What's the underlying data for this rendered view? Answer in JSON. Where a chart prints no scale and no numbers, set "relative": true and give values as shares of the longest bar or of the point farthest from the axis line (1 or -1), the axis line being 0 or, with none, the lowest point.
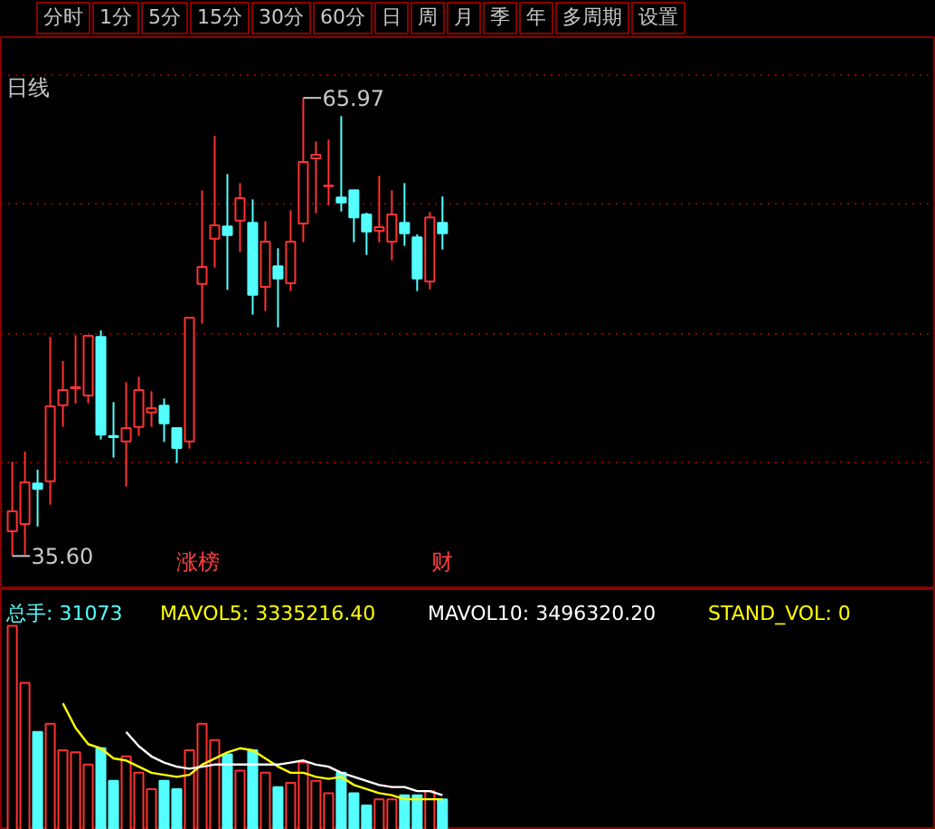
{
  "chart_data": [
    {
      "type": "candlestick",
      "title": "日线",
      "categories": [
        null,
        null,
        null,
        null,
        null,
        null,
        null,
        null,
        null,
        null,
        null,
        null,
        null,
        null,
        null,
        null,
        null,
        null,
        null,
        null,
        null,
        null,
        null,
        null,
        null,
        null,
        null,
        null,
        null,
        null,
        null,
        null,
        null,
        null,
        null
      ],
      "ohlc": [
        [
          37.24,
          41.84,
          35.6,
          38.56
        ],
        [
          37.72,
          42.52,
          35.7,
          40.48
        ],
        [
          40.4,
          41.32,
          37.56,
          40.04
        ],
        [
          40.56,
          50.12,
          39.0,
          45.52
        ],
        [
          45.6,
          48.52,
          44.16,
          46.6
        ],
        [
          46.72,
          50.24,
          45.72,
          46.8
        ],
        [
          46.24,
          50.24,
          45.72,
          50.2
        ],
        [
          50.12,
          50.56,
          43.32,
          43.64
        ],
        [
          43.56,
          45.8,
          42.12,
          43.48
        ],
        [
          43.2,
          47.12,
          40.2,
          44.08
        ],
        [
          44.16,
          47.48,
          43.56,
          46.6
        ],
        [
          45.12,
          46.52,
          44.16,
          45.4
        ],
        [
          45.56,
          46.04,
          43.16,
          44.4
        ],
        [
          44.08,
          44.1,
          41.76,
          42.76
        ],
        [
          43.2,
          51.44,
          42.72,
          51.4
        ],
        [
          53.64,
          59.84,
          51.0,
          54.76
        ],
        [
          56.64,
          63.44,
          54.72,
          57.52
        ],
        [
          57.44,
          60.92,
          53.24,
          56.88
        ],
        [
          57.84,
          60.32,
          55.76,
          59.32
        ],
        [
          57.68,
          59.24,
          51.6,
          52.92
        ],
        [
          53.44,
          57.8,
          51.84,
          56.44
        ],
        [
          54.8,
          56.0,
          50.76,
          54.0
        ],
        [
          53.68,
          58.52,
          53.16,
          56.44
        ],
        [
          57.64,
          65.97,
          56.4,
          61.72
        ],
        [
          61.96,
          63.08,
          58.32,
          62.2
        ],
        [
          60.12,
          63.2,
          58.84,
          60.16
        ],
        [
          59.36,
          64.76,
          58.44,
          59.04
        ],
        [
          59.84,
          59.84,
          56.4,
          58.04
        ],
        [
          58.24,
          58.36,
          55.56,
          57.12
        ],
        [
          57.16,
          60.8,
          56.4,
          57.4
        ],
        [
          56.44,
          59.84,
          55.2,
          58.24
        ],
        [
          57.68,
          60.32,
          56.16,
          57.0
        ],
        [
          56.72,
          56.92,
          53.16,
          54.0
        ],
        [
          53.8,
          58.4,
          53.28,
          58.04
        ],
        [
          57.68,
          59.44,
          55.92,
          57.0
        ]
      ],
      "colors": [
        "#ff3232",
        "#ff3232",
        "#54ffff",
        "#ff3232",
        "#ff3232",
        "#ff3232",
        "#ff3232",
        "#54ffff",
        "#54ffff",
        "#ff3232",
        "#ff3232",
        "#ff3232",
        "#54ffff",
        "#54ffff",
        "#ff3232",
        "#ff3232",
        "#ff3232",
        "#54ffff",
        "#ff3232",
        "#54ffff",
        "#ff3232",
        "#54ffff",
        "#ff3232",
        "#ff3232",
        "#ff3232",
        "#ff3232",
        "#54ffff",
        "#54ffff",
        "#54ffff",
        "#ff3232",
        "#ff3232",
        "#54ffff",
        "#54ffff",
        "#ff3232",
        "#54ffff"
      ],
      "ylim": [
        33.4,
        70.0
      ],
      "yticks": [
        {
          "value": 41.8,
          "label": null
        },
        {
          "value": 50.3,
          "label": null
        },
        {
          "value": 59.0,
          "label": null
        },
        {
          "value": 67.5,
          "label": null
        }
      ],
      "grid": "y",
      "tick_labels": false,
      "annotations": [
        "分时",
        "1分",
        "5分",
        "15分",
        "30分",
        "60分",
        "日",
        "周",
        "月",
        "季",
        "年",
        "多周期",
        "设置",
        "65.97",
        "35.60",
        "涨榜",
        "财"
      ]
    },
    {
      "type": "bar",
      "relative": true,
      "categories": [
        null,
        null,
        null,
        null,
        null,
        null,
        null,
        null,
        null,
        null,
        null,
        null,
        null,
        null,
        null,
        null,
        null,
        null,
        null,
        null,
        null,
        null,
        null,
        null,
        null,
        null,
        null,
        null,
        null,
        null,
        null,
        null,
        null,
        null,
        null
      ],
      "series": [
        {
          "color": "#54ffff",
          "colors": [
            "#ff3232",
            "#ff3232",
            "#54ffff",
            "#ff3232",
            "#ff3232",
            "#ff3232",
            "#ff3232",
            "#54ffff",
            "#54ffff",
            "#ff3232",
            "#ff3232",
            "#ff3232",
            "#54ffff",
            "#54ffff",
            "#ff3232",
            "#ff3232",
            "#ff3232",
            "#54ffff",
            "#ff3232",
            "#54ffff",
            "#ff3232",
            "#54ffff",
            "#ff3232",
            "#ff3232",
            "#ff3232",
            "#ff3232",
            "#54ffff",
            "#54ffff",
            "#54ffff",
            "#ff3232",
            "#ff3232",
            "#54ffff",
            "#54ffff",
            "#ff3232",
            "#54ffff"
          ],
          "values": [
            1,
            0.72,
            0.48,
            0.52,
            0.39,
            0.38,
            0.32,
            0.4,
            0.24,
            0.36,
            0.28,
            0.2,
            0.24,
            0.2,
            0.39,
            0.52,
            0.44,
            0.37,
            0.29,
            0.39,
            0.28,
            0.21,
            0.23,
            0.33,
            0.24,
            0.18,
            0.28,
            0.18,
            0.12,
            0.15,
            0.15,
            0.17,
            0.17,
            0.19,
            0.15
          ]
        },
        {
          "type": "line",
          "color": "#ffff00",
          "values": [
            null,
            null,
            null,
            null,
            0.62,
            0.5,
            0.42,
            0.4,
            0.35,
            0.34,
            0.31,
            0.28,
            0.27,
            0.26,
            0.27,
            0.32,
            0.35,
            0.38,
            0.4,
            0.39,
            0.35,
            0.31,
            0.28,
            0.28,
            0.26,
            0.25,
            0.26,
            0.22,
            0.2,
            0.18,
            0.17,
            0.15,
            0.15,
            0.15,
            0.15
          ]
        },
        {
          "type": "line",
          "color": "#ffffff",
          "values": [
            null,
            null,
            null,
            null,
            null,
            null,
            null,
            null,
            null,
            0.48,
            0.41,
            0.36,
            0.33,
            0.31,
            0.3,
            0.31,
            0.32,
            0.32,
            0.32,
            0.32,
            0.32,
            0.32,
            0.33,
            0.34,
            0.32,
            0.31,
            0.28,
            0.26,
            0.24,
            0.22,
            0.21,
            0.21,
            0.19,
            0.19,
            0.17
          ]
        }
      ],
      "annotations": [
        "总手: 31073",
        "MAVOL5: 3335216.40",
        "MAVOL10: 3496320.20",
        "STAND_VOL: 0"
      ]
    }
  ]
}
